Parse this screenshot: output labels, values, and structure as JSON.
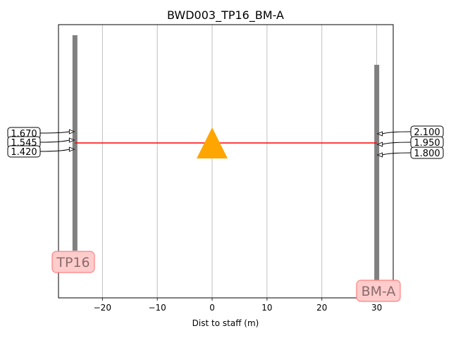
{
  "chart_data": {
    "type": "scatter",
    "title": "BWD003_TP16_BM-A",
    "xlabel": "Dist to staff (m)",
    "ylabel": "",
    "xlim": [
      -28,
      33
    ],
    "ylim": [
      0,
      1
    ],
    "xticks": [
      -20,
      -10,
      0,
      10,
      20,
      30
    ],
    "xtick_labels": [
      "−20",
      "−10",
      "0",
      "10",
      "20",
      "30"
    ],
    "grid_x": true,
    "instrument": {
      "x": 0,
      "marker": "triangle",
      "color": "#FFA500"
    },
    "line_of_sight": {
      "x_start": -25,
      "x_end": 30,
      "color": "#ff0000"
    },
    "staffs": [
      {
        "name": "TP16",
        "x": -25,
        "color": "#808080",
        "readings": [
          {
            "label": "1.670",
            "value": 1.67
          },
          {
            "label": "1.545",
            "value": 1.545
          },
          {
            "label": "1.420",
            "value": 1.42
          }
        ]
      },
      {
        "name": "BM-A",
        "x": 30,
        "color": "#808080",
        "readings": [
          {
            "label": "2.100",
            "value": 2.1
          },
          {
            "label": "1.950",
            "value": 1.95
          },
          {
            "label": "1.800",
            "value": 1.8
          }
        ]
      }
    ]
  }
}
